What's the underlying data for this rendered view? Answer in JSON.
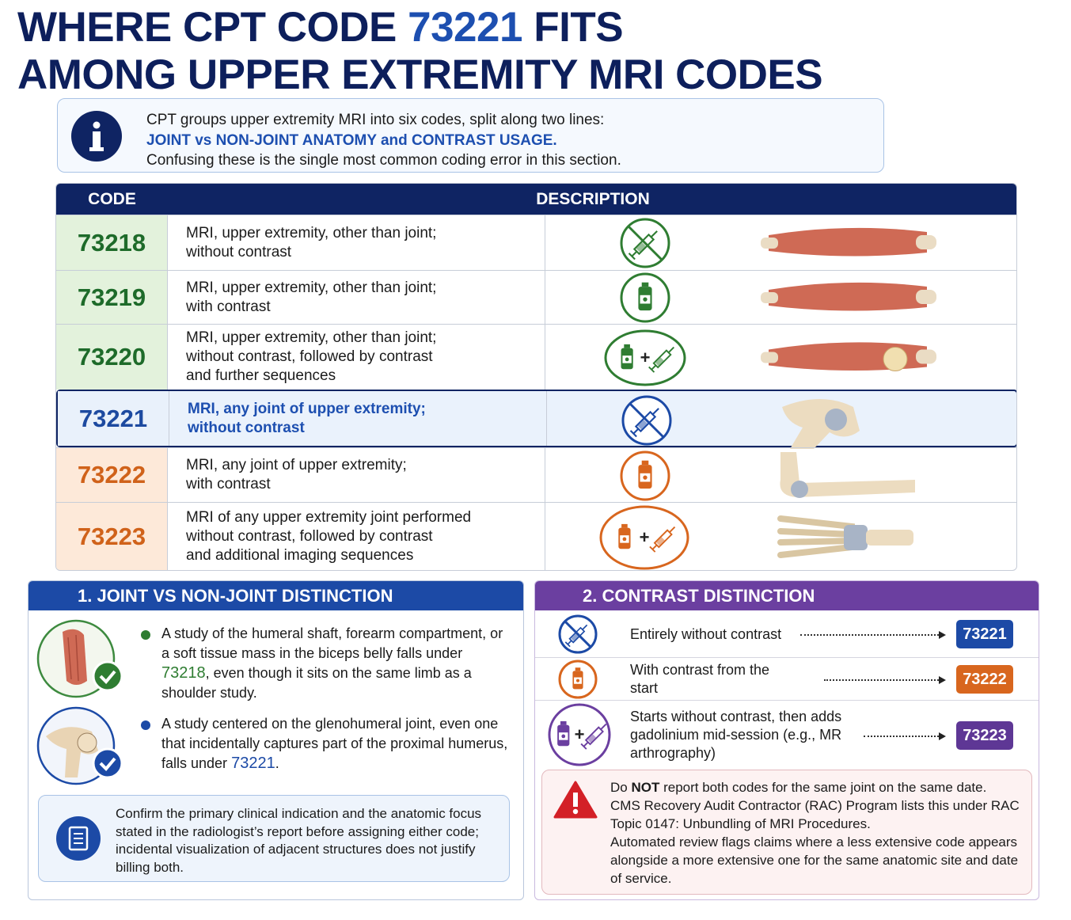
{
  "title": {
    "line1": [
      "WHERE CPT CODE",
      "73221",
      "FITS"
    ],
    "line2": "AMONG UPPER EXTREMITY MRI CODES"
  },
  "info": {
    "line1": "CPT groups upper extremity MRI into six codes, split along two lines:",
    "line2": "JOINT vs NON-JOINT ANATOMY and CONTRAST USAGE.",
    "line3": "Confusing these is the single most common coding error in this section."
  },
  "table": {
    "headers": [
      "CODE",
      "DESCRIPTION"
    ],
    "rows": [
      {
        "code": "73218",
        "description": [
          "MRI, upper extremity, other than joint;",
          "without contrast"
        ]
      },
      {
        "code": "73219",
        "description": [
          "MRI, upper extremity, other than joint;",
          "with contrast"
        ]
      },
      {
        "code": "73220",
        "description": [
          "MRI, upper extremity, other than joint;",
          "without contrast, followed by contrast",
          "and further sequences"
        ]
      },
      {
        "code": "73221",
        "description": [
          "MRI, any joint of upper extremity;",
          "without contrast"
        ]
      },
      {
        "code": "73222",
        "description": [
          "MRI, any joint of upper extremity;",
          "with contrast"
        ]
      },
      {
        "code": "73223",
        "description": [
          "MRI of any upper extremity joint performed",
          "without contrast, followed by contrast",
          "and additional imaging sequences"
        ]
      }
    ]
  },
  "joint_section": {
    "title": "1. JOINT VS NON-JOINT DISTINCTION",
    "bullets": [
      [
        "A study of the humeral shaft, forearm compartment, or a soft tissue mass in the biceps belly falls under",
        "73218",
        ", even though it sits on the same limb as a shoulder study."
      ],
      [
        "A study centered on the glenohumeral joint, even one that incidentally captures part of the proximal humerus, falls under",
        "73221",
        "."
      ]
    ],
    "note": "Confirm the primary clinical indication and the anatomic focus stated in the radiologist’s report before assigning either code; incidental visualization of adjacent structures does not justify billing both."
  },
  "contrast_section": {
    "title": "2. CONTRAST DISTINCTION",
    "rows": [
      {
        "text": "Entirely without contrast",
        "code": "73221"
      },
      {
        "text": "With contrast from the start",
        "code": "73222"
      },
      {
        "text": "Starts without contrast, then adds gadolinium mid-session (e.g., MR arthrography)",
        "code": "73223"
      }
    ],
    "warning": {
      "line1": [
        "Do",
        "NOT",
        "report both codes for the same joint on the same date."
      ],
      "line2": "CMS Recovery Audit Contractor (RAC) Program lists this under RAC Topic 0147: Unbundling of MRI Procedures.",
      "line3": "Automated review flags claims where a less extensive code appears alongside a more extensive one for the same anatomic site and date of service."
    }
  }
}
